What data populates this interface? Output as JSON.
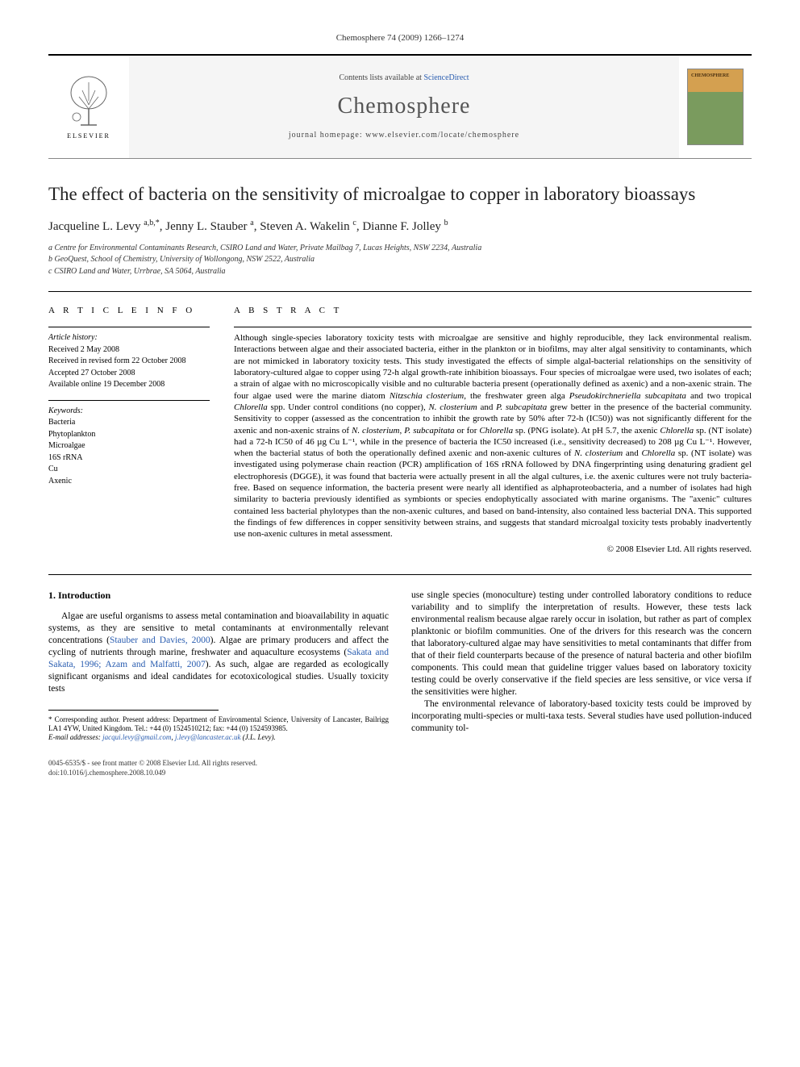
{
  "header": {
    "citation": "Chemosphere 74 (2009) 1266–1274",
    "contents_prefix": "Contents lists available at ",
    "contents_link": "ScienceDirect",
    "journal_name": "Chemosphere",
    "homepage_prefix": "journal homepage: ",
    "homepage_url": "www.elsevier.com/locate/chemosphere",
    "publisher_label": "ELSEVIER",
    "cover_label": "CHEMOSPHERE"
  },
  "article": {
    "title": "The effect of bacteria on the sensitivity of microalgae to copper in laboratory bioassays",
    "authors_html": "Jacqueline L. Levy <sup>a,b,*</sup>, Jenny L. Stauber <sup>a</sup>, Steven A. Wakelin <sup>c</sup>, Dianne F. Jolley <sup>b</sup>",
    "affiliations": [
      "a Centre for Environmental Contaminants Research, CSIRO Land and Water, Private Mailbag 7, Lucas Heights, NSW 2234, Australia",
      "b GeoQuest, School of Chemistry, University of Wollongong, NSW 2522, Australia",
      "c CSIRO Land and Water, Urrbrae, SA 5064, Australia"
    ]
  },
  "info": {
    "heading": "A R T I C L E   I N F O",
    "history_label": "Article history:",
    "history": [
      "Received 2 May 2008",
      "Received in revised form 22 October 2008",
      "Accepted 27 October 2008",
      "Available online 19 December 2008"
    ],
    "keywords_label": "Keywords:",
    "keywords": [
      "Bacteria",
      "Phytoplankton",
      "Microalgae",
      "16S rRNA",
      "Cu",
      "Axenic"
    ]
  },
  "abstract": {
    "heading": "A B S T R A C T",
    "text": "Although single-species laboratory toxicity tests with microalgae are sensitive and highly reproducible, they lack environmental realism. Interactions between algae and their associated bacteria, either in the plankton or in biofilms, may alter algal sensitivity to contaminants, which are not mimicked in laboratory toxicity tests. This study investigated the effects of simple algal-bacterial relationships on the sensitivity of laboratory-cultured algae to copper using 72-h algal growth-rate inhibition bioassays. Four species of microalgae were used, two isolates of each; a strain of algae with no microscopically visible and no culturable bacteria present (operationally defined as axenic) and a non-axenic strain. The four algae used were the marine diatom <em>Nitzschia closterium</em>, the freshwater green alga <em>Pseudokirchneriella subcapitata</em> and two tropical <em>Chlorella</em> spp. Under control conditions (no copper), <em>N. closterium</em> and <em>P. subcapitata</em> grew better in the presence of the bacterial community. Sensitivity to copper (assessed as the concentration to inhibit the growth rate by 50% after 72-h (IC50)) was not significantly different for the axenic and non-axenic strains of <em>N. closterium</em>, <em>P. subcapitata</em> or for <em>Chlorella</em> sp. (PNG isolate). At pH 5.7, the axenic <em>Chlorella</em> sp. (NT isolate) had a 72-h IC50 of 46 µg Cu L⁻¹, while in the presence of bacteria the IC50 increased (i.e., sensitivity decreased) to 208 µg Cu L⁻¹. However, when the bacterial status of both the operationally defined axenic and non-axenic cultures of <em>N. closterium</em> and <em>Chlorella</em> sp. (NT isolate) was investigated using polymerase chain reaction (PCR) amplification of 16S rRNA followed by DNA fingerprinting using denaturing gradient gel electrophoresis (DGGE), it was found that bacteria were actually present in all the algal cultures, i.e. the axenic cultures were not truly bacteria-free. Based on sequence information, the bacteria present were nearly all identified as alphaproteobacteria, and a number of isolates had high similarity to bacteria previously identified as symbionts or species endophytically associated with marine organisms. The \"axenic\" cultures contained less bacterial phylotypes than the non-axenic cultures, and based on band-intensity, also contained less bacterial DNA. This supported the findings of few differences in copper sensitivity between strains, and suggests that standard microalgal toxicity tests probably inadvertently use non-axenic cultures in metal assessment.",
    "copyright": "© 2008 Elsevier Ltd. All rights reserved."
  },
  "body": {
    "section_number": "1.",
    "section_title": "Introduction",
    "left_p1_pre": "Algae are useful organisms to assess metal contamination and bioavailability in aquatic systems, as they are sensitive to metal contaminants at environmentally relevant concentrations (",
    "left_p1_cite1": "Stauber and Davies, 2000",
    "left_p1_mid1": "). Algae are primary producers and affect the cycling of nutrients through marine, freshwater and aquaculture ecosystems (",
    "left_p1_cite2": "Sakata and Sakata, 1996; Azam and Malfatti, 2007",
    "left_p1_post": "). As such, algae are regarded as ecologically significant organisms and ideal candidates for ecotoxicological studies. Usually toxicity tests",
    "right_p1": "use single species (monoculture) testing under controlled laboratory conditions to reduce variability and to simplify the interpretation of results. However, these tests lack environmental realism because algae rarely occur in isolation, but rather as part of complex planktonic or biofilm communities. One of the drivers for this research was the concern that laboratory-cultured algae may have sensitivities to metal contaminants that differ from that of their field counterparts because of the presence of natural bacteria and other biofilm components. This could mean that guideline trigger values based on laboratory toxicity testing could be overly conservative if the field species are less sensitive, or vice versa if the sensitivities were higher.",
    "right_p2": "The environmental relevance of laboratory-based toxicity tests could be improved by incorporating multi-species or multi-taxa tests. Several studies have used pollution-induced community tol-"
  },
  "footnote": {
    "corresponding": "* Corresponding author. Present address: Department of Environmental Science, University of Lancaster, Bailrigg LA1 4YW, United Kingdom. Tel.: +44 (0) 1524510212; fax: +44 (0) 1524593985.",
    "email_label": "E-mail addresses: ",
    "email1": "jacqui.levy@gmail.com",
    "email_sep": ", ",
    "email2": "j.levy@lancaster.ac.uk",
    "email_author": " (J.L. Levy)."
  },
  "footer": {
    "line1": "0045-6535/$ - see front matter © 2008 Elsevier Ltd. All rights reserved.",
    "line2": "doi:10.1016/j.chemosphere.2008.10.049"
  },
  "colors": {
    "text": "#000000",
    "link": "#2a5db0",
    "banner_bg": "#f5f5f5",
    "journal_name": "#555555",
    "cover_top": "#d4a050",
    "cover_bottom": "#7a9b5e"
  },
  "typography": {
    "body_font": "Georgia, Times New Roman, serif",
    "title_size_pt": 23,
    "author_size_pt": 15,
    "journal_name_size_pt": 28,
    "abstract_size_pt": 11,
    "body_size_pt": 11.5,
    "footnote_size_pt": 9
  }
}
